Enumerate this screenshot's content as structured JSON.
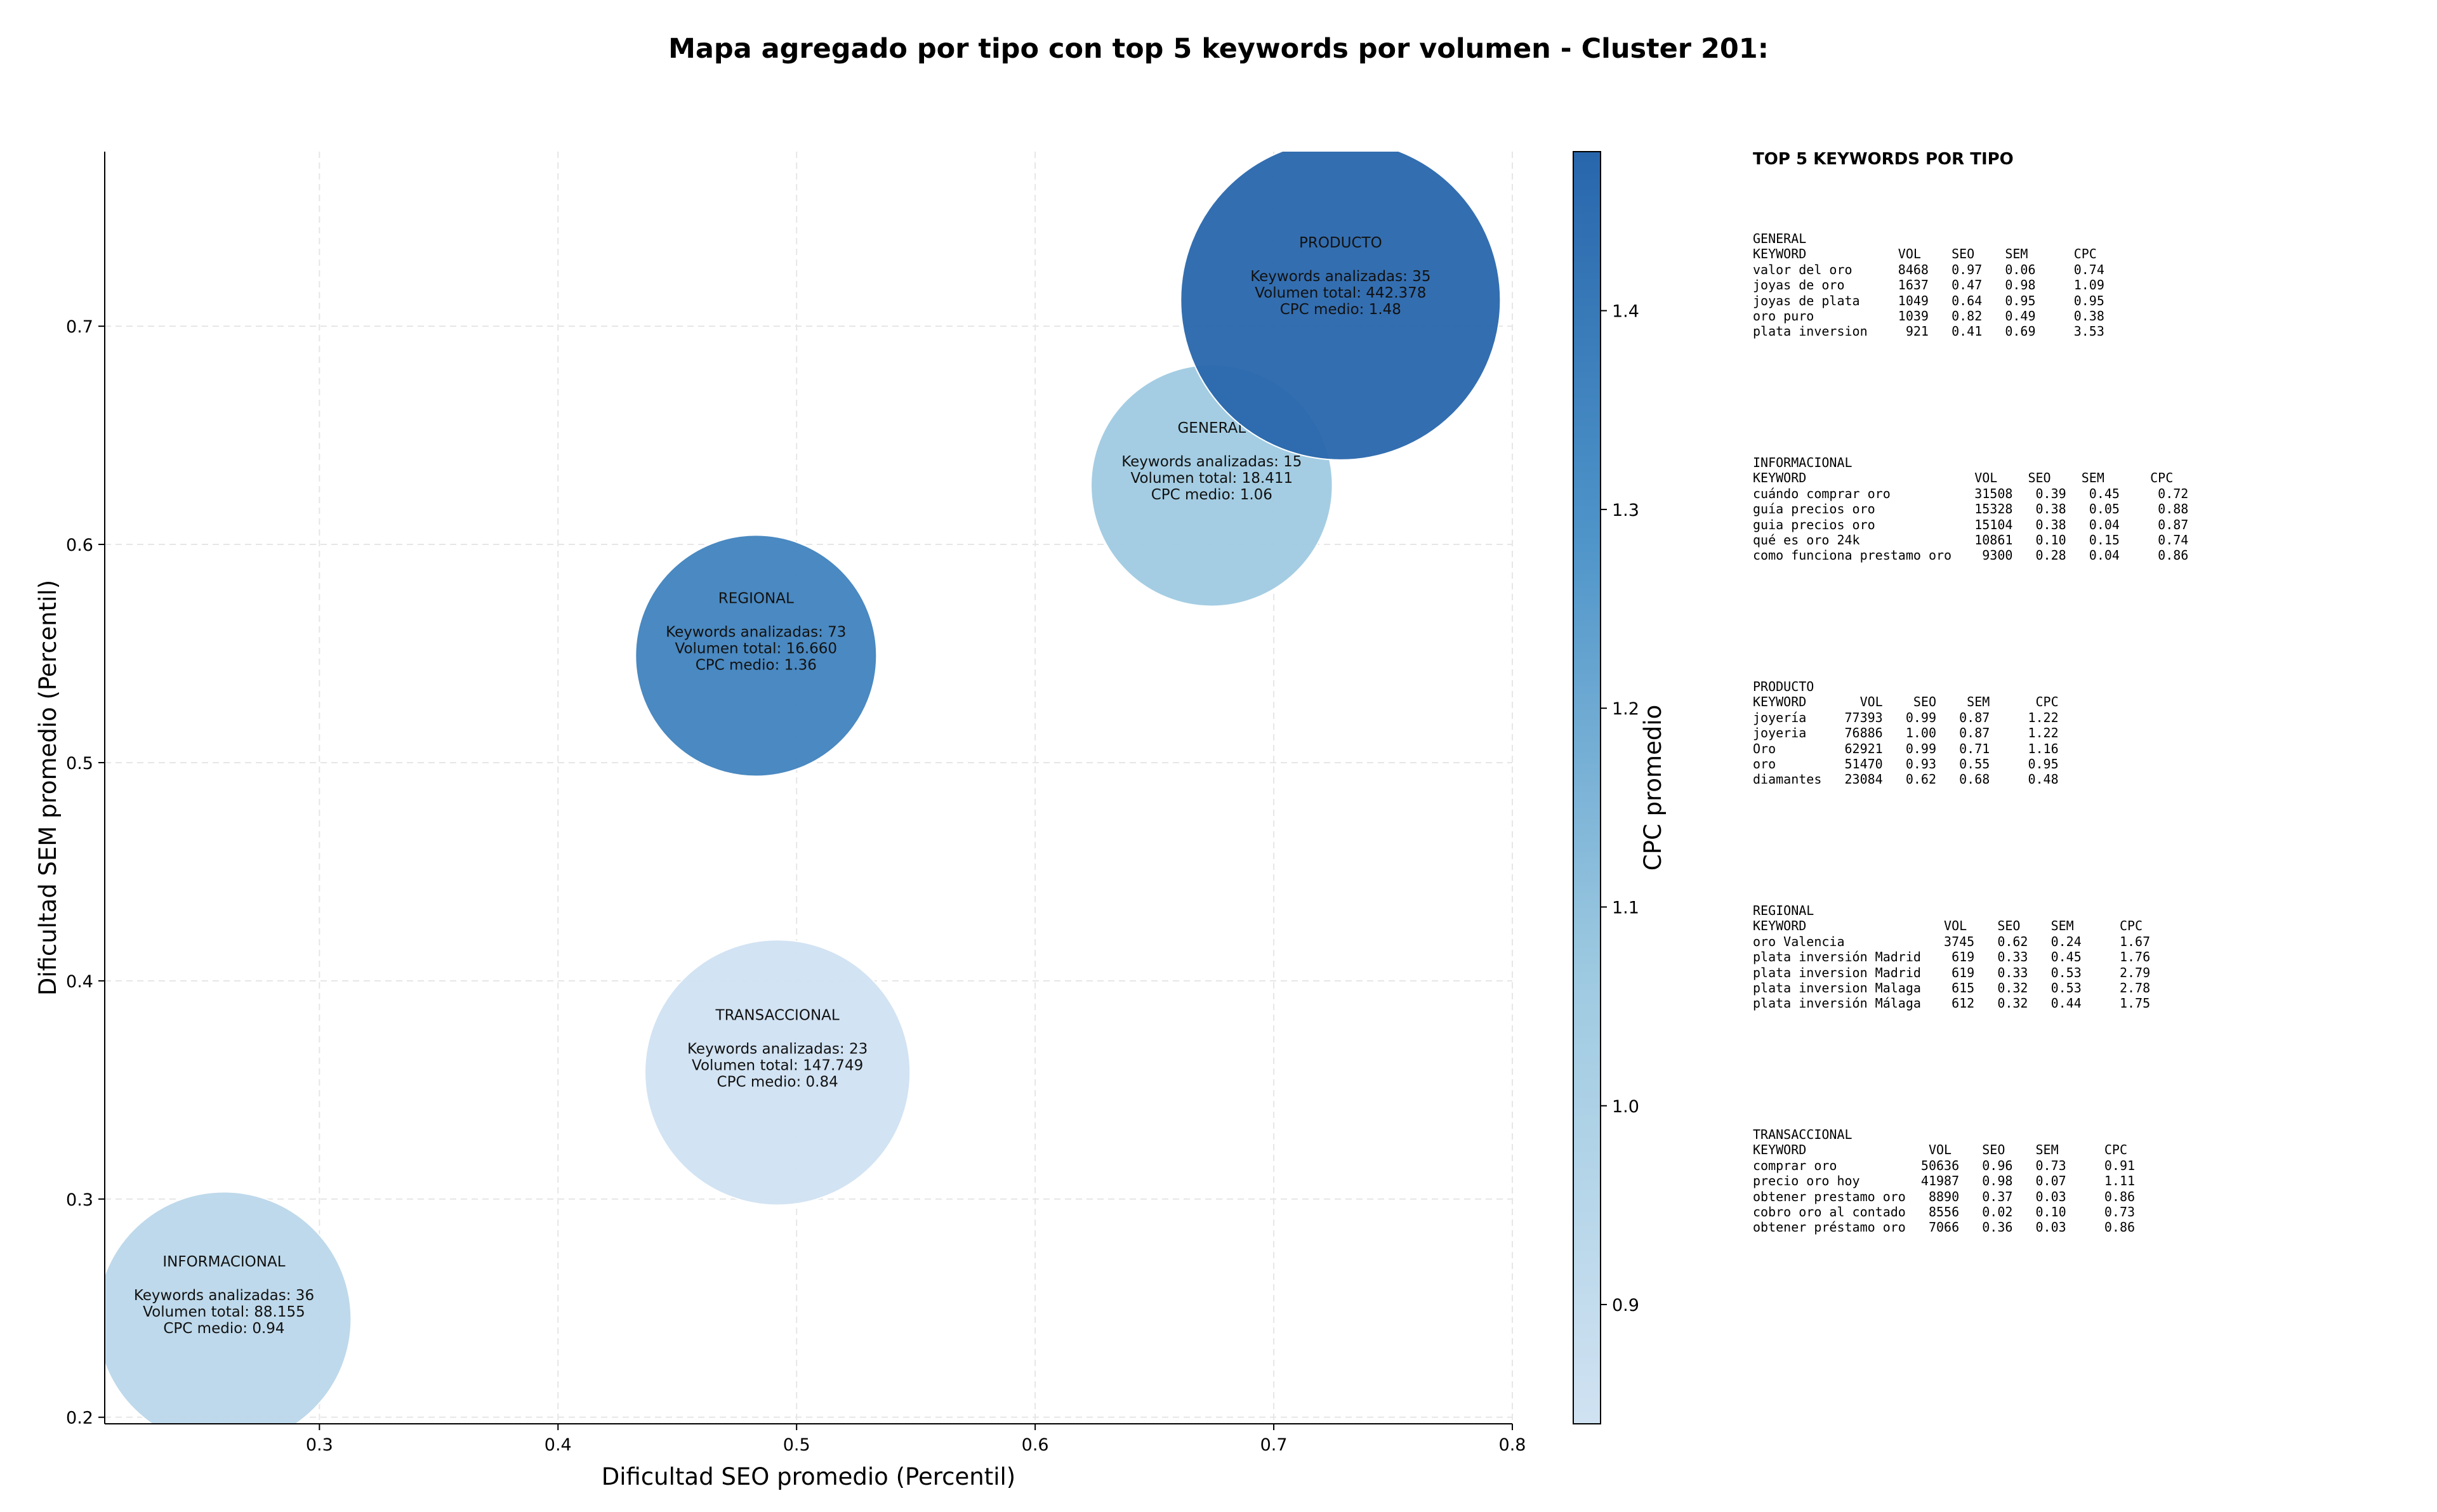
{
  "chart_data": {
    "type": "scatter",
    "title": "Mapa agregado por tipo con top 5 keywords por volumen - Cluster 201:",
    "xlabel": "Dificultad SEO promedio (Percentil)",
    "ylabel": "Dificultad SEM promedio (Percentil)",
    "xlim": [
      0.21,
      0.8
    ],
    "ylim": [
      0.197,
      0.78
    ],
    "xticks": [
      0.3,
      0.4,
      0.5,
      0.6,
      0.7,
      0.8
    ],
    "yticks": [
      0.2,
      0.3,
      0.4,
      0.5,
      0.6,
      0.7
    ],
    "grid": true,
    "colorbar": {
      "label": "CPC promedio",
      "min": 0.84,
      "max": 1.48,
      "ticks": [
        0.9,
        1.0,
        1.1,
        1.2,
        1.3,
        1.4
      ]
    },
    "points": [
      {
        "label": "INFORMACIONAL",
        "x": 0.26,
        "y": 0.245,
        "keywords_line": "Keywords analizadas: 36",
        "volume_line": "Volumen total: 88.155",
        "cpc_line": "CPC medio: 0.94",
        "cpc": 0.94,
        "volume": 88155
      },
      {
        "label": "TRANSACCIONAL",
        "x": 0.492,
        "y": 0.358,
        "keywords_line": "Keywords analizadas: 23",
        "volume_line": "Volumen total: 147.749",
        "cpc_line": "CPC medio: 0.84",
        "cpc": 0.84,
        "volume": 147749
      },
      {
        "label": "REGIONAL",
        "x": 0.483,
        "y": 0.549,
        "keywords_line": "Keywords analizadas: 73",
        "volume_line": "Volumen total: 16.660",
        "cpc_line": "CPC medio: 1.36",
        "cpc": 1.36,
        "volume": 16660
      },
      {
        "label": "GENERAL",
        "x": 0.674,
        "y": 0.627,
        "keywords_line": "Keywords analizadas: 15",
        "volume_line": "Volumen total: 18.411",
        "cpc_line": "CPC medio: 1.06",
        "cpc": 1.06,
        "volume": 18411
      },
      {
        "label": "PRODUCTO",
        "x": 0.728,
        "y": 0.712,
        "keywords_line": "Keywords analizadas: 35",
        "volume_line": "Volumen total: 442.378",
        "cpc_line": "CPC medio: 1.48",
        "cpc": 1.48,
        "volume": 442378
      }
    ]
  },
  "panel": {
    "title": "TOP 5 KEYWORDS POR TIPO",
    "blocks": [
      {
        "name": "GENERAL",
        "lines": [
          "KEYWORD            VOL    SEO    SEM      CPC",
          "valor del oro      8468   0.97   0.06     0.74",
          "joyas de oro       1637   0.47   0.98     1.09",
          "joyas de plata     1049   0.64   0.95     0.95",
          "oro puro           1039   0.82   0.49     0.38",
          "plata inversion     921   0.41   0.69     3.53"
        ]
      },
      {
        "name": "INFORMACIONAL",
        "lines": [
          "KEYWORD                      VOL    SEO    SEM      CPC",
          "cuándo comprar oro           31508   0.39   0.45     0.72",
          "guía precios oro             15328   0.38   0.05     0.88",
          "guia precios oro             15104   0.38   0.04     0.87",
          "qué es oro 24k               10861   0.10   0.15     0.74",
          "como funciona prestamo oro    9300   0.28   0.04     0.86"
        ]
      },
      {
        "name": "PRODUCTO",
        "lines": [
          "KEYWORD       VOL    SEO    SEM      CPC",
          "joyería     77393   0.99   0.87     1.22",
          "joyeria     76886   1.00   0.87     1.22",
          "Oro         62921   0.99   0.71     1.16",
          "oro         51470   0.93   0.55     0.95",
          "diamantes   23084   0.62   0.68     0.48"
        ]
      },
      {
        "name": "REGIONAL",
        "lines": [
          "KEYWORD                  VOL    SEO    SEM      CPC",
          "oro Valencia             3745   0.62   0.24     1.67",
          "plata inversión Madrid    619   0.33   0.45     1.76",
          "plata inversion Madrid    619   0.33   0.53     2.79",
          "plata inversion Malaga    615   0.32   0.53     2.78",
          "plata inversión Málaga    612   0.32   0.44     1.75"
        ]
      },
      {
        "name": "TRANSACCIONAL",
        "lines": [
          "KEYWORD                VOL    SEO    SEM      CPC",
          "comprar oro           50636   0.96   0.73     0.91",
          "precio oro hoy        41987   0.98   0.07     1.11",
          "obtener prestamo oro   8890   0.37   0.03     0.86",
          "cobro oro al contado   8556   0.02   0.10     0.73",
          "obtener préstamo oro   7066   0.36   0.03     0.86"
        ]
      }
    ]
  }
}
